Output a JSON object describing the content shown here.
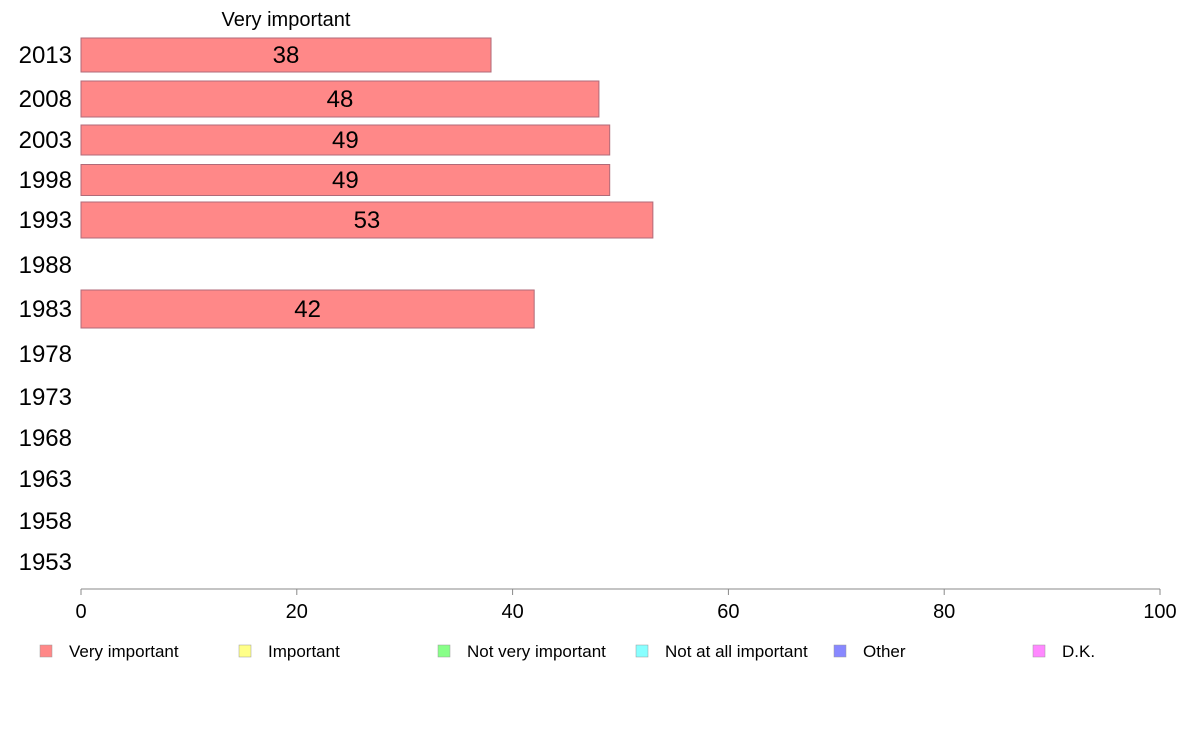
{
  "chart_data": {
    "type": "bar",
    "orientation": "horizontal",
    "title": "",
    "column_title": "Very important",
    "categories": [
      "2013",
      "2008",
      "2003",
      "1998",
      "1993",
      "1988",
      "1983",
      "1978",
      "1973",
      "1968",
      "1963",
      "1958",
      "1953"
    ],
    "series": [
      {
        "name": "Very important",
        "color": "#ff8888",
        "values": [
          38,
          48,
          49,
          49,
          53,
          null,
          42,
          null,
          null,
          null,
          null,
          null,
          null
        ],
        "labels": [
          "38",
          "48",
          "49",
          "49",
          "53",
          "",
          "42",
          "",
          "",
          "",
          "",
          "",
          ""
        ]
      }
    ],
    "xlim": [
      0,
      100
    ],
    "xticks": [
      "0",
      "20",
      "40",
      "60",
      "80",
      "100"
    ],
    "grid": false,
    "legend_position": "bottom",
    "legend": [
      {
        "label": "Very important",
        "color": "#ff8888"
      },
      {
        "label": "Important",
        "color": "#ffff88"
      },
      {
        "label": "Not very important",
        "color": "#88ff88"
      },
      {
        "label": "Not at all important",
        "color": "#88ffff"
      },
      {
        "label": "Other",
        "color": "#8888ff"
      },
      {
        "label": "D.K.",
        "color": "#ff88ff"
      }
    ]
  }
}
